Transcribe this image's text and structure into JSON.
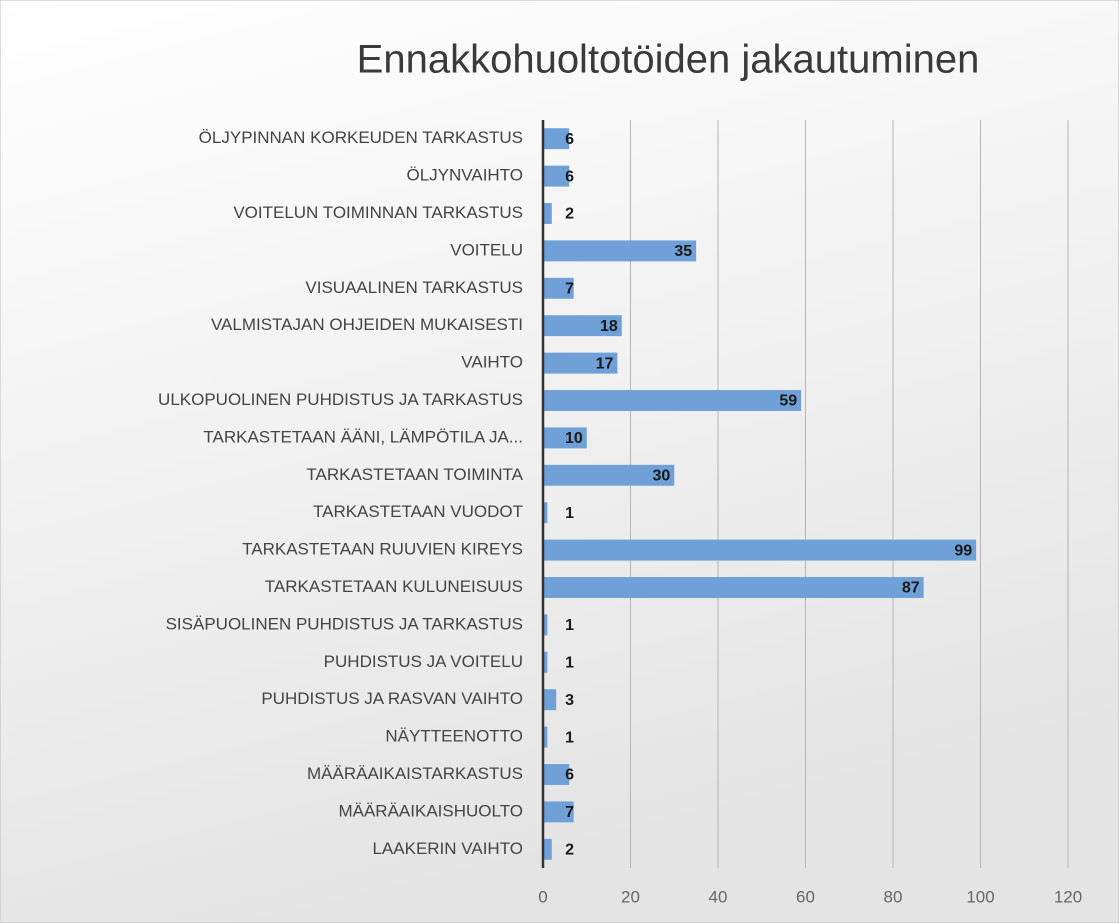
{
  "chart_data": {
    "type": "bar",
    "orientation": "horizontal",
    "title": "Ennakkohuoltotöiden jakautuminen",
    "categories": [
      "ÖLJYPINNAN KORKEUDEN TARKASTUS",
      "ÖLJYNVAIHTO",
      "VOITELUN TOIMINNAN TARKASTUS",
      "VOITELU",
      "VISUAALINEN TARKASTUS",
      "VALMISTAJAN OHJEIDEN MUKAISESTI",
      "VAIHTO",
      "ULKOPUOLINEN PUHDISTUS JA TARKASTUS",
      "TARKASTETAAN ÄÄNI, LÄMPÖTILA JA...",
      "TARKASTETAAN TOIMINTA",
      "TARKASTETAAN VUODOT",
      "TARKASTETAAN RUUVIEN KIREYS",
      "TARKASTETAAN KULUNEISUUS",
      "SISÄPUOLINEN PUHDISTUS JA TARKASTUS",
      "PUHDISTUS JA VOITELU",
      "PUHDISTUS JA RASVAN VAIHTO",
      "NÄYTTEENOTTO",
      "MÄÄRÄAIKAISTARKASTUS",
      "MÄÄRÄAIKAISHUOLTO",
      "LAAKERIN VAIHTO"
    ],
    "values": [
      6,
      6,
      2,
      35,
      7,
      18,
      17,
      59,
      10,
      30,
      1,
      99,
      87,
      1,
      1,
      3,
      1,
      6,
      7,
      2
    ],
    "color": "#6fa0d8",
    "xlim": [
      0,
      120
    ],
    "xticks": [
      0,
      20,
      40,
      60,
      80,
      100,
      120
    ],
    "grid": true
  }
}
